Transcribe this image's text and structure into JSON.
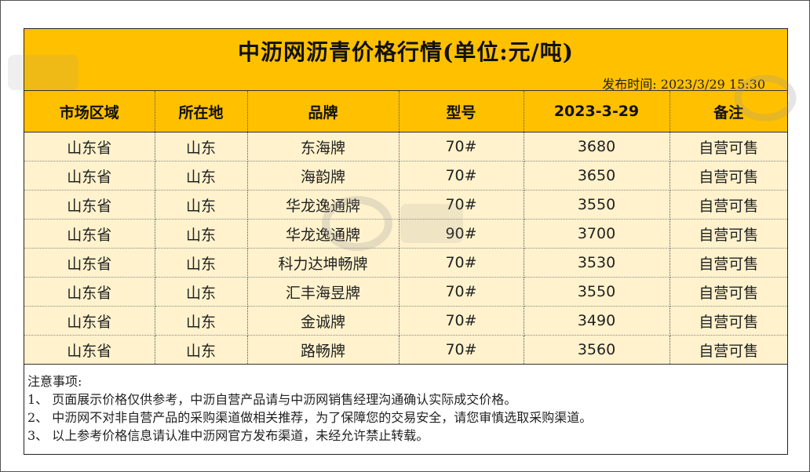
{
  "title": "中沥网沥青价格行情(单位:元/吨)",
  "publish_time": "发布时间: 2023/3/29 15:30",
  "columns": [
    "市场区域",
    "所在地",
    "品牌",
    "型号",
    "2023-3-29",
    "备注"
  ],
  "rows": [
    [
      "山东省",
      "山东",
      "东海牌",
      "70#",
      "3680",
      "自营可售"
    ],
    [
      "山东省",
      "山东",
      "海韵牌",
      "70#",
      "3650",
      "自营可售"
    ],
    [
      "山东省",
      "山东",
      "华龙逸通牌",
      "70#",
      "3550",
      "自营可售"
    ],
    [
      "山东省",
      "山东",
      "华龙逸通牌",
      "90#",
      "3700",
      "自营可售"
    ],
    [
      "山东省",
      "山东",
      "科力达坤畅牌",
      "70#",
      "3530",
      "自营可售"
    ],
    [
      "山东省",
      "山东",
      "汇丰海昱牌",
      "70#",
      "3550",
      "自营可售"
    ],
    [
      "山东省",
      "山东",
      "金诚牌",
      "70#",
      "3490",
      "自营可售"
    ],
    [
      "山东省",
      "山东",
      "路畅牌",
      "70#",
      "3560",
      "自营可售"
    ]
  ],
  "notes": {
    "heading": "注意事项:",
    "items": [
      "1、 页面展示价格仅供参考，中沥自营产品请与中沥网销售经理沟通确认实际成交价格。",
      "2、 中沥网不对非自营产品的采购渠道做相关推荐，为了保障您的交易安全，请您审慎选取采购渠道。",
      "3、 以上参考价格信息请认准中沥网官方发布渠道，未经允许禁止转载。"
    ]
  },
  "colors": {
    "header_bg": "#ffc000",
    "row_bg": "#fff2cc"
  }
}
